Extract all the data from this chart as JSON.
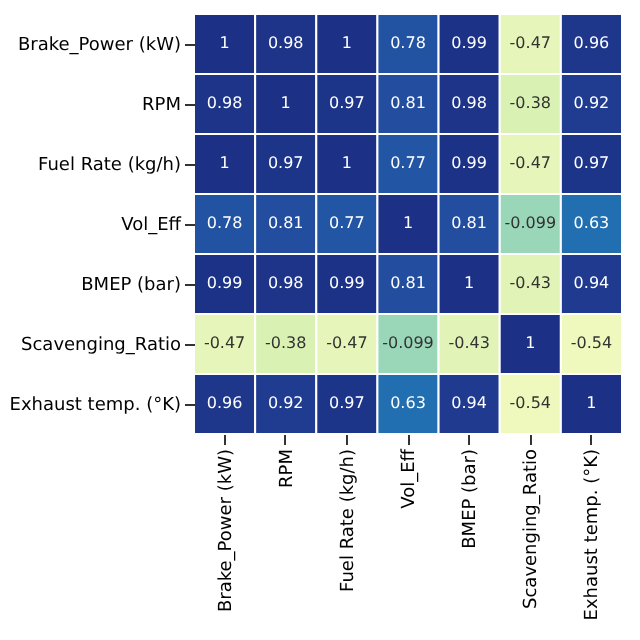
{
  "chart_data": {
    "type": "heatmap",
    "categories": [
      "Brake_Power (kW)",
      "RPM",
      "Fuel Rate (kg/h)",
      "Vol_Eff",
      "BMEP (bar)",
      "Scavenging_Ratio",
      "Exhaust temp. (°K)"
    ],
    "y_categories": [
      "Brake_Power (kW)",
      "RPM",
      "Fuel Rate (kg/h)",
      "Vol_Eff",
      "BMEP (bar)",
      "Scavenging_Ratio",
      "Exhaust temp. (°K)"
    ],
    "cells": [
      [
        1,
        0.98,
        1,
        0.78,
        0.99,
        -0.47,
        0.96
      ],
      [
        0.98,
        1,
        0.97,
        0.81,
        0.98,
        -0.38,
        0.92
      ],
      [
        1,
        0.97,
        1,
        0.77,
        0.99,
        -0.47,
        0.97
      ],
      [
        0.78,
        0.81,
        0.77,
        1,
        0.81,
        -0.099,
        0.63
      ],
      [
        0.99,
        0.98,
        0.99,
        0.81,
        1,
        -0.43,
        0.94
      ],
      [
        -0.47,
        -0.38,
        -0.47,
        -0.099,
        -0.43,
        1,
        -0.54
      ],
      [
        0.96,
        0.92,
        0.97,
        0.63,
        0.94,
        -0.54,
        1
      ]
    ],
    "data_labels": true
  }
}
